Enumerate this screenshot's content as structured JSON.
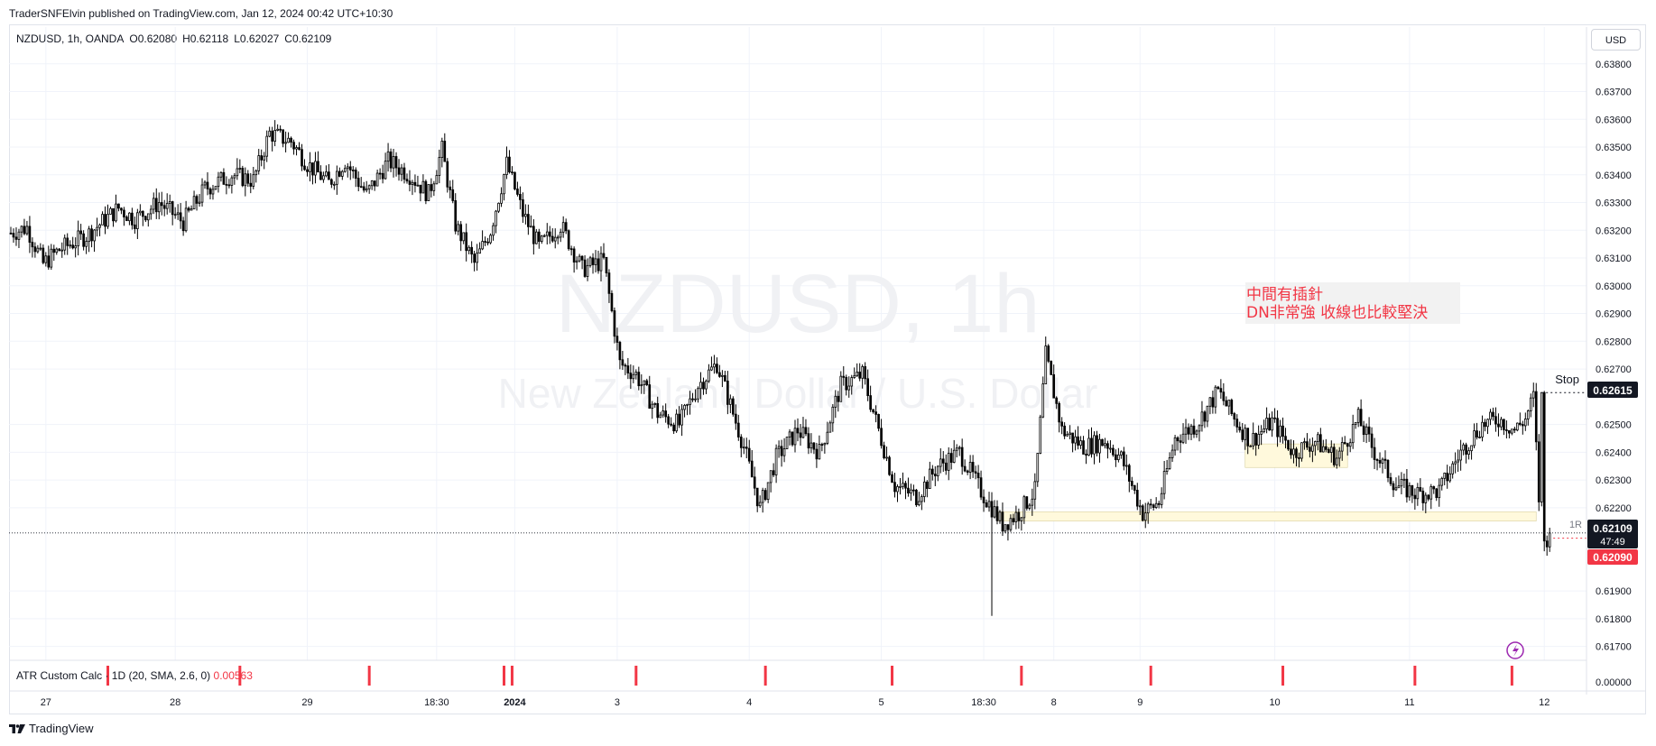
{
  "header": {
    "published": "TraderSNFElvin published on TradingView.com, Jan 12, 2024 00:42 UTC+10:30"
  },
  "symbol_line": {
    "symbol": "NZDUSD, 1h, OANDA",
    "open": "O0.62080",
    "high": "H0.62118",
    "low": "L0.62027",
    "close": "C0.62109"
  },
  "currency_button": "USD",
  "watermark": {
    "line1": "NZDUSD, 1h",
    "line2": "New Zealand Dollar / U.S. Dollar"
  },
  "annotation": {
    "line1": "中間有插針",
    "line2": "DN非常強 收線也比較堅決"
  },
  "stop_label": "Stop",
  "r_label": "1R",
  "price_badges": {
    "stop": "0.62615",
    "last": "0.62109",
    "countdown": "47:49",
    "bid": "0.62090"
  },
  "indicator": {
    "name": "ATR Custom Calc · 1D (20, SMA, 2.6, 0)",
    "value": "0.00563",
    "axis_value": "0.00000"
  },
  "footer": {
    "brand": "TradingView"
  },
  "colors": {
    "up_fill": "#ffffff",
    "down_fill": "#000000",
    "wick": "#000000",
    "accent_red": "#f23645",
    "zone_fill": "#fff9dc"
  },
  "chart_data": {
    "type": "candlestick",
    "title": "NZDUSD, 1h",
    "y_range": [
      0.6165,
      0.639
    ],
    "y_ticks": [
      0.638,
      0.637,
      0.636,
      0.635,
      0.634,
      0.633,
      0.632,
      0.631,
      0.63,
      0.629,
      0.628,
      0.627,
      0.625,
      0.624,
      0.623,
      0.622,
      0.619,
      0.618,
      0.617
    ],
    "y_tick_labels": [
      "0.63800",
      "0.63700",
      "0.63600",
      "0.63500",
      "0.63400",
      "0.63300",
      "0.63200",
      "0.63100",
      "0.63000",
      "0.62900",
      "0.62800",
      "0.62700",
      "0.62500",
      "0.62400",
      "0.62300",
      "0.62200",
      "0.61900",
      "0.61800",
      "0.61700"
    ],
    "x_tick_labels": [
      "27",
      "28",
      "29",
      "18:30",
      "2024",
      "3",
      "4",
      "5",
      "18:30",
      "8",
      "9",
      "10",
      "11",
      "12"
    ],
    "x_tick_positions": [
      13,
      61,
      110,
      158,
      187,
      225,
      274,
      323,
      361,
      387,
      419,
      469,
      519,
      569
    ],
    "bar_count": 584,
    "close_path": [
      [
        0,
        0.6319
      ],
      [
        6,
        0.6321
      ],
      [
        12,
        0.6308
      ],
      [
        18,
        0.6313
      ],
      [
        28,
        0.6318
      ],
      [
        40,
        0.6328
      ],
      [
        46,
        0.6324
      ],
      [
        55,
        0.633
      ],
      [
        64,
        0.6323
      ],
      [
        72,
        0.6335
      ],
      [
        82,
        0.634
      ],
      [
        90,
        0.6338
      ],
      [
        96,
        0.6355
      ],
      [
        104,
        0.6352
      ],
      [
        110,
        0.6344
      ],
      [
        118,
        0.6337
      ],
      [
        124,
        0.6345
      ],
      [
        132,
        0.6333
      ],
      [
        140,
        0.6345
      ],
      [
        148,
        0.634
      ],
      [
        155,
        0.6333
      ],
      [
        160,
        0.6349
      ],
      [
        165,
        0.6322
      ],
      [
        172,
        0.6308
      ],
      [
        178,
        0.632
      ],
      [
        184,
        0.6344
      ],
      [
        190,
        0.6326
      ],
      [
        196,
        0.6314
      ],
      [
        204,
        0.6322
      ],
      [
        212,
        0.6306
      ],
      [
        220,
        0.6309
      ],
      [
        226,
        0.6272
      ],
      [
        232,
        0.6268
      ],
      [
        240,
        0.6254
      ],
      [
        248,
        0.625
      ],
      [
        255,
        0.6264
      ],
      [
        262,
        0.6272
      ],
      [
        268,
        0.6254
      ],
      [
        272,
        0.6242
      ],
      [
        278,
        0.622
      ],
      [
        284,
        0.6238
      ],
      [
        292,
        0.6248
      ],
      [
        300,
        0.624
      ],
      [
        308,
        0.6264
      ],
      [
        316,
        0.6268
      ],
      [
        322,
        0.6248
      ],
      [
        328,
        0.6228
      ],
      [
        336,
        0.6224
      ],
      [
        344,
        0.6235
      ],
      [
        352,
        0.624
      ],
      [
        360,
        0.6226
      ],
      [
        368,
        0.6214
      ],
      [
        374,
        0.6218
      ],
      [
        380,
        0.6226
      ],
      [
        384,
        0.6275
      ],
      [
        390,
        0.6248
      ],
      [
        398,
        0.6242
      ],
      [
        406,
        0.6244
      ],
      [
        412,
        0.6238
      ],
      [
        420,
        0.6218
      ],
      [
        426,
        0.6222
      ],
      [
        432,
        0.6245
      ],
      [
        440,
        0.625
      ],
      [
        448,
        0.6262
      ],
      [
        454,
        0.6252
      ],
      [
        460,
        0.6244
      ],
      [
        468,
        0.6251
      ],
      [
        476,
        0.624
      ],
      [
        484,
        0.6244
      ],
      [
        492,
        0.6238
      ],
      [
        500,
        0.6252
      ],
      [
        506,
        0.624
      ],
      [
        514,
        0.6228
      ],
      [
        522,
        0.6225
      ],
      [
        530,
        0.6226
      ],
      [
        538,
        0.624
      ],
      [
        546,
        0.625
      ],
      [
        552,
        0.6252
      ],
      [
        558,
        0.6248
      ],
      [
        562,
        0.6252
      ],
      [
        565,
        0.626
      ],
      [
        568,
        0.6205
      ],
      [
        571,
        0.6211
      ]
    ],
    "spikes": [
      {
        "bar": 364,
        "low": 0.6181
      }
    ],
    "zones": [
      {
        "bar_start": 366,
        "bar_end": 566,
        "top": 0.62185,
        "bottom": 0.62152
      },
      {
        "bar_start": 458,
        "bar_end": 496,
        "top": 0.6243,
        "bottom": 0.62345
      }
    ],
    "stop_level": 0.62615,
    "last_price": 0.62109,
    "bid_price": 0.6209,
    "atr_marker_bars": [
      36,
      85,
      133,
      183,
      186,
      232,
      280,
      327,
      375,
      423,
      472,
      521,
      557
    ],
    "grid": true,
    "legend": "none"
  }
}
